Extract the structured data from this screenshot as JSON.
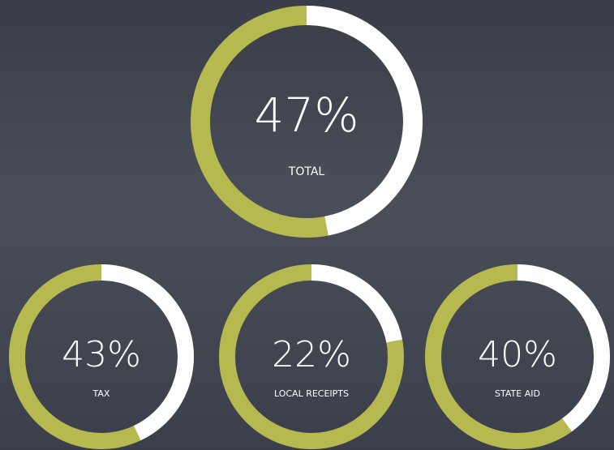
{
  "chart_data": [
    {
      "type": "donut",
      "title": "TOTAL",
      "values": [
        47
      ],
      "value_labels": [
        "47%"
      ],
      "ylim": [
        0,
        100
      ],
      "color": "#ffffff",
      "track_color": "#b5b950"
    },
    {
      "type": "donut",
      "title": "TAX",
      "values": [
        43
      ],
      "value_labels": [
        "43%"
      ],
      "ylim": [
        0,
        100
      ],
      "color": "#ffffff",
      "track_color": "#b5b950"
    },
    {
      "type": "donut",
      "title": "LOCAL RECEIPTS",
      "values": [
        22
      ],
      "value_labels": [
        "22%"
      ],
      "ylim": [
        0,
        100
      ],
      "color": "#ffffff",
      "track_color": "#b5b950"
    },
    {
      "type": "donut",
      "title": "STATE AID",
      "values": [
        40
      ],
      "value_labels": [
        "40%"
      ],
      "ylim": [
        0,
        100
      ],
      "color": "#ffffff",
      "track_color": "#b5b950"
    }
  ]
}
